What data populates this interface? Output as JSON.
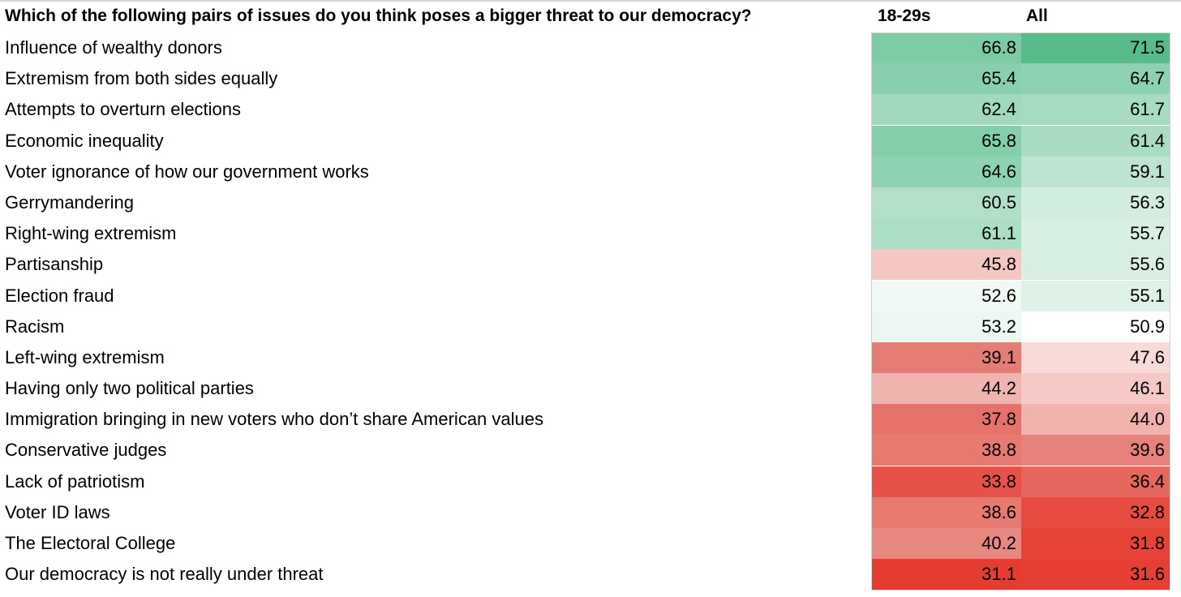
{
  "header": {
    "question": "Which of the following pairs of issues do you think poses a bigger threat to our democracy?",
    "col1": "18-29s",
    "col2": "All"
  },
  "colors": {
    "high": "#57bb8a",
    "mid": "#ffffff",
    "low": "#e67c73"
  },
  "chart_data": {
    "type": "table",
    "columns": [
      "18-29s",
      "All"
    ],
    "rows": [
      {
        "label": "Influence of wealthy donors",
        "values": [
          "66.8",
          "71.5"
        ]
      },
      {
        "label": "Extremism from both sides equally",
        "values": [
          "65.4",
          "64.7"
        ]
      },
      {
        "label": "Attempts to overturn elections",
        "values": [
          "62.4",
          "61.7"
        ]
      },
      {
        "label": "Economic inequality",
        "values": [
          "65.8",
          "61.4"
        ]
      },
      {
        "label": "Voter ignorance of how our government works",
        "values": [
          "64.6",
          "59.1"
        ]
      },
      {
        "label": "Gerrymandering",
        "values": [
          "60.5",
          "56.3"
        ]
      },
      {
        "label": "Right-wing extremism",
        "values": [
          "61.1",
          "55.7"
        ]
      },
      {
        "label": "Partisanship",
        "values": [
          "45.8",
          "55.6"
        ]
      },
      {
        "label": "Election fraud",
        "values": [
          "52.6",
          "55.1"
        ]
      },
      {
        "label": "Racism",
        "values": [
          "53.2",
          "50.9"
        ]
      },
      {
        "label": "Left-wing extremism",
        "values": [
          "39.1",
          "47.6"
        ]
      },
      {
        "label": "Having only two political parties",
        "values": [
          "44.2",
          "46.1"
        ]
      },
      {
        "label": "Immigration bringing in new voters who don’t share American values",
        "values": [
          "37.8",
          "44.0"
        ]
      },
      {
        "label": "Conservative judges",
        "values": [
          "38.8",
          "39.6"
        ]
      },
      {
        "label": "Lack of patriotism",
        "values": [
          "33.8",
          "36.4"
        ]
      },
      {
        "label": "Voter ID laws",
        "values": [
          "38.6",
          "32.8"
        ]
      },
      {
        "label": "The Electoral College",
        "values": [
          "40.2",
          "31.8"
        ]
      },
      {
        "label": "Our democracy is not really under threat",
        "values": [
          "31.1",
          "31.6"
        ]
      }
    ]
  }
}
